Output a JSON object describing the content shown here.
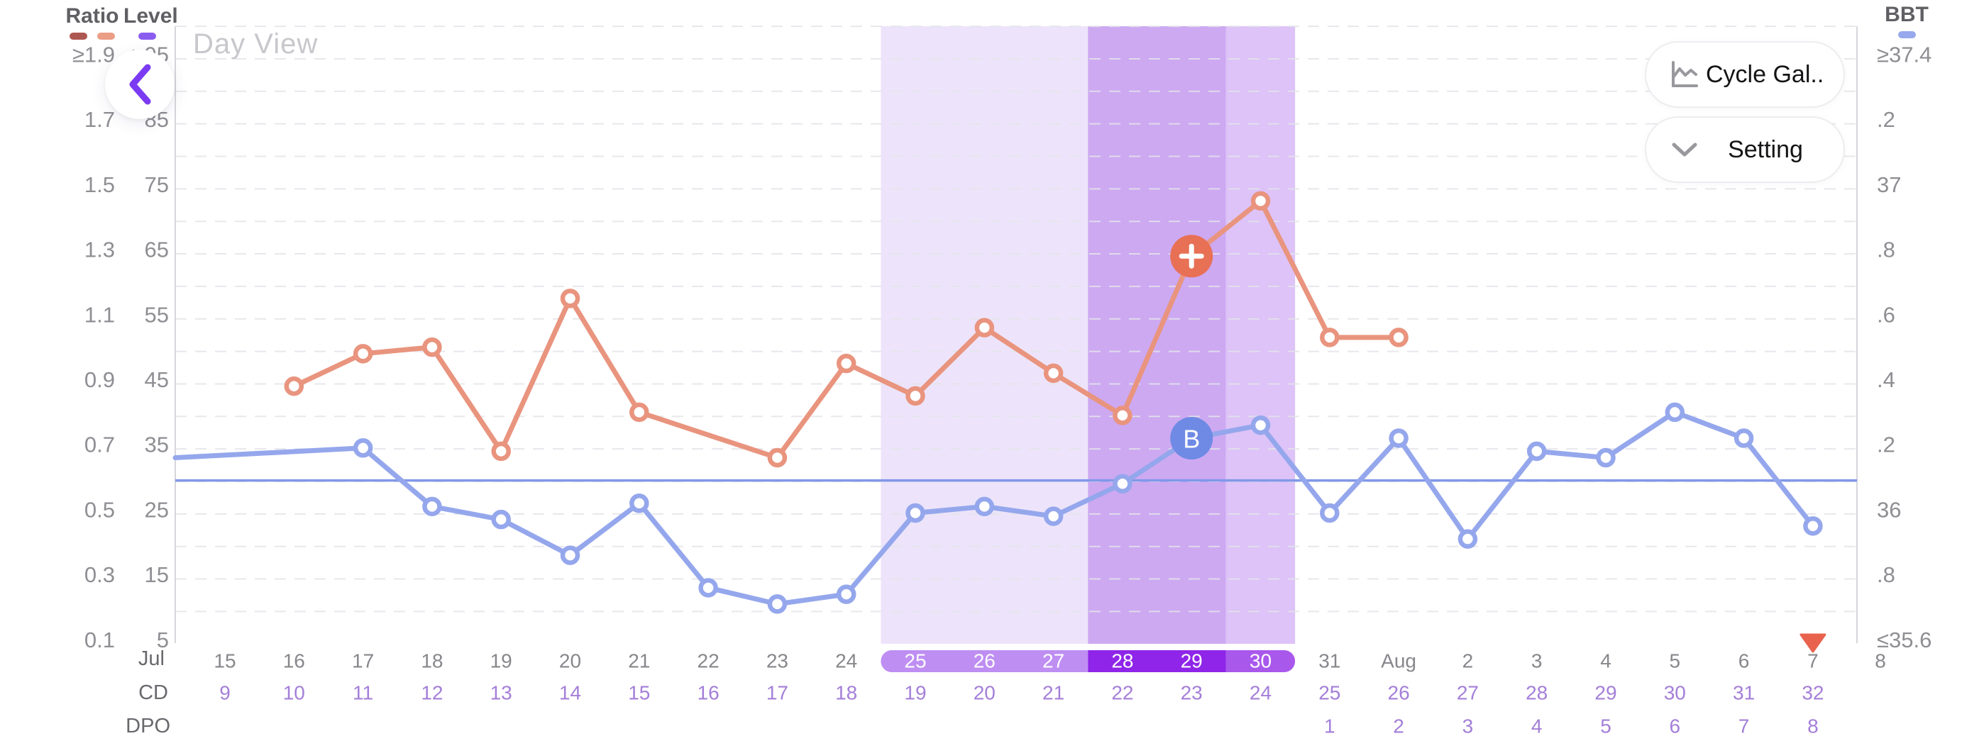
{
  "header": {
    "title": "Day View",
    "back_icon": "chevron-left-icon",
    "buttons": [
      {
        "label": "Cycle Gal...",
        "icon": "line-chart-icon"
      },
      {
        "label": "Setting",
        "icon": "chevron-down-icon"
      }
    ]
  },
  "legend": {
    "ratio_label": "Ratio",
    "level_label": "Level",
    "bbt_label": "BBT",
    "ratio_swatches": [
      "#ad5751",
      "#eb9d85"
    ],
    "level_swatch": "#8b5cf0",
    "bbt_swatch": "#97a9ec"
  },
  "axes": {
    "ratio_ticks": [
      "≥1.9",
      "1.7",
      "1.5",
      "1.3",
      "1.1",
      "0.9",
      "0.7",
      "0.5",
      "0.3",
      "0.1"
    ],
    "level_ticks": [
      ">95",
      "85",
      "75",
      "65",
      "55",
      "45",
      "35",
      "25",
      "15",
      "5"
    ],
    "bbt_ticks": [
      "≥37.4",
      ".2",
      "37",
      ".8",
      ".6",
      ".4",
      ".2",
      "36",
      ".8",
      "≤35.6"
    ]
  },
  "bottom": {
    "month_label": "Jul",
    "cd_label": "CD",
    "dpo_label": "DPO",
    "edge_date": "8"
  },
  "chart_data": {
    "type": "line",
    "x_categories": [
      "Jul 15",
      "Jul 16",
      "Jul 17",
      "Jul 18",
      "Jul 19",
      "Jul 20",
      "Jul 21",
      "Jul 22",
      "Jul 23",
      "Jul 24",
      "Jul 25",
      "Jul 26",
      "Jul 27",
      "Jul 28",
      "Jul 29",
      "Jul 30",
      "Jul 31",
      "Aug 1",
      "Aug 2",
      "Aug 3",
      "Aug 4",
      "Aug 5",
      "Aug 6",
      "Aug 7"
    ],
    "date_labels": [
      "15",
      "16",
      "17",
      "18",
      "19",
      "20",
      "21",
      "22",
      "23",
      "24",
      "25",
      "26",
      "27",
      "28",
      "29",
      "30",
      "31",
      "Aug",
      "2",
      "3",
      "4",
      "5",
      "6",
      "7"
    ],
    "cd_values": [
      9,
      10,
      11,
      12,
      13,
      14,
      15,
      16,
      17,
      18,
      19,
      20,
      21,
      22,
      23,
      24,
      25,
      26,
      27,
      28,
      29,
      30,
      31,
      32
    ],
    "dpo_values": [
      null,
      null,
      null,
      null,
      null,
      null,
      null,
      null,
      null,
      null,
      null,
      null,
      null,
      null,
      null,
      null,
      1,
      2,
      3,
      4,
      5,
      6,
      7,
      8
    ],
    "series": [
      {
        "name": "Ratio",
        "axis": "ratio",
        "color": "#e9947e",
        "values": [
          null,
          0.88,
          0.98,
          1.0,
          0.68,
          1.15,
          0.8,
          null,
          0.66,
          0.95,
          0.85,
          1.06,
          0.92,
          0.79,
          1.28,
          1.45,
          1.03,
          1.03,
          null,
          null,
          null,
          null,
          null,
          null
        ]
      },
      {
        "name": "BBT",
        "axis": "bbt",
        "color": "#95a7ec",
        "values": [
          null,
          null,
          36.19,
          36.01,
          35.97,
          35.86,
          36.02,
          35.76,
          35.71,
          35.74,
          35.99,
          36.01,
          35.98,
          36.08,
          36.22,
          36.26,
          35.99,
          36.22,
          35.91,
          36.18,
          36.16,
          36.3,
          36.22,
          35.95
        ],
        "edge_entry_value": 36.16
      }
    ],
    "coverline": 36.09,
    "ratio_range": [
      0.1,
      1.9
    ],
    "level_range": [
      5,
      95
    ],
    "bbt_range": [
      35.6,
      37.4
    ],
    "grid": "dashed",
    "bands": [
      {
        "name": "fertile-window-band",
        "from": 10,
        "to": 12,
        "color": "#ede4fb"
      },
      {
        "name": "peak-days-band",
        "from": 13,
        "to": 14,
        "color": "#cda9f2"
      },
      {
        "name": "post-peak-band",
        "from": 15,
        "to": 15,
        "color": "#ddc3f8"
      }
    ],
    "pill_segments": [
      {
        "from": 10,
        "to": 12,
        "color": "#be8ef2"
      },
      {
        "from": 13,
        "to": 14,
        "color": "#8f25e8"
      },
      {
        "from": 15,
        "to": 15,
        "color": "#a958ec"
      }
    ],
    "badges": [
      {
        "series": "ratio",
        "index": 14,
        "label": "+",
        "color": "#e87055"
      },
      {
        "series": "bbt",
        "index": 14,
        "label": "B",
        "color": "#6e8ae4"
      }
    ],
    "period_marker": {
      "index": 23,
      "color": "#e8624d"
    },
    "colors": {
      "ratio_line": "#e9947e",
      "bbt_line": "#95a7ec",
      "coverline": "#8198e8",
      "grid": "#e4e4e9",
      "axis_line": "#d6d6db",
      "tick_text": "#8e8e93",
      "date_text": "#87878c",
      "cd_text": "#a47fd8",
      "row_label": "#68686d",
      "pill_text": "#ffffff"
    }
  }
}
